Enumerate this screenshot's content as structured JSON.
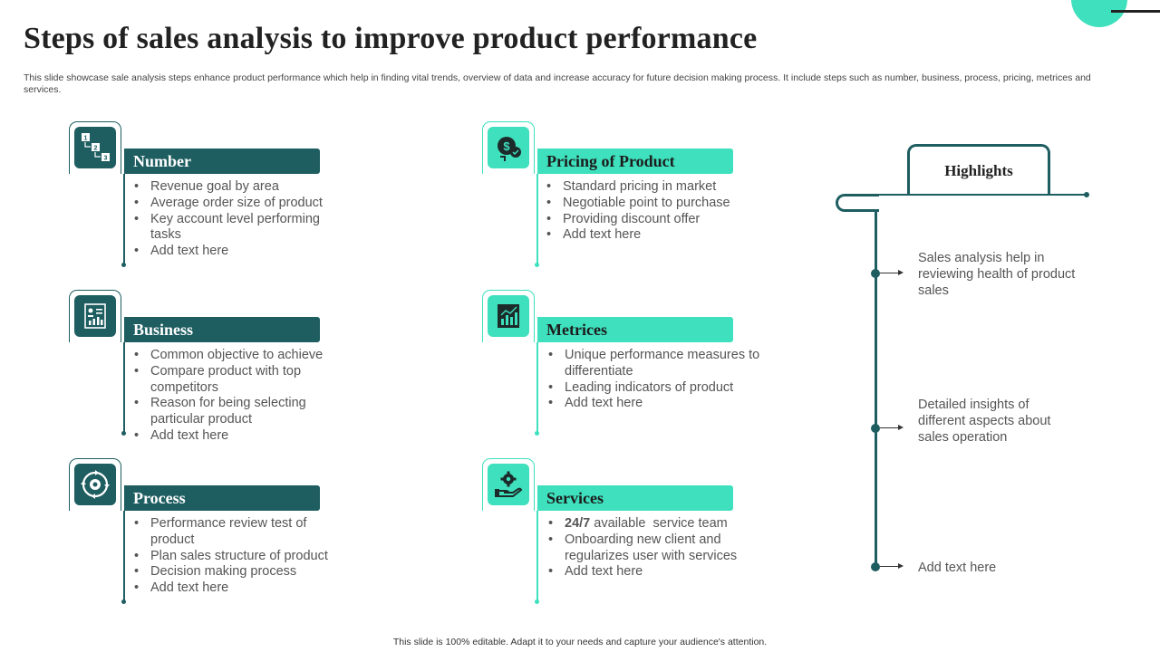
{
  "title": "Steps of sales analysis to improve product performance",
  "subtitle": "This slide showcase sale analysis steps enhance product performance which help in finding vital trends, overview of data and increase accuracy for future decision making process. It include steps such as number, business, process, pricing, metrices and services.",
  "colors": {
    "dark_teal": "#1e5d60",
    "mint": "#3ee0bd"
  },
  "cards": {
    "number": {
      "icon": "numbered-blocks-icon",
      "heading": "Number",
      "items": [
        "Revenue goal by area",
        "Average order size of product",
        "Key account level performing tasks",
        "Add text here"
      ]
    },
    "business": {
      "icon": "business-report-icon",
      "heading": "Business",
      "items": [
        "Common objective to achieve",
        "Compare product with top competitors",
        "Reason for being selecting particular product",
        "Add text here"
      ]
    },
    "process": {
      "icon": "process-cycle-gear-icon",
      "heading": "Process",
      "items": [
        "Performance review test of product",
        "Plan sales structure of product",
        "Decision making process",
        "Add text here"
      ]
    },
    "pricing": {
      "icon": "pricing-tag-icon",
      "heading": "Pricing of Product",
      "items": [
        "Standard pricing in market",
        "Negotiable point to purchase",
        "Providing discount offer",
        "Add text here"
      ]
    },
    "metrices": {
      "icon": "bar-chart-icon",
      "heading": "Metrices",
      "items": [
        "Unique performance measures to differentiate",
        "Leading indicators of product",
        "Add text here"
      ]
    },
    "services": {
      "icon": "hand-gear-service-icon",
      "heading": "Services",
      "items_bold": "24/7",
      "items_first_rest": " available  service team",
      "items": [
        "Onboarding new client and regularizes user with services",
        "Add text here"
      ]
    }
  },
  "highlights": {
    "heading": "Highlights",
    "points": [
      "Sales analysis help in reviewing health of product sales",
      "Detailed insights of different aspects about sales operation",
      "Add text here"
    ]
  },
  "footer": "This slide is 100% editable. Adapt it to your needs and capture your audience's attention."
}
